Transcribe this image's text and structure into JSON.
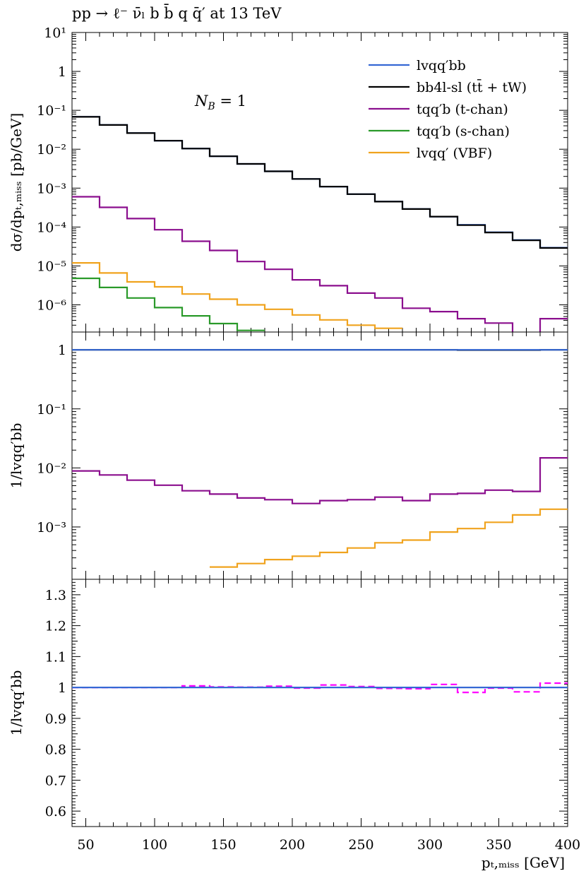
{
  "title": "pp → ℓ⁻ ν̄ₗ b b̄ q q̄′ at 13 TeV",
  "xlabel": "pₜ,ₘᵢₛₛ [GeV]",
  "colors": {
    "lvqqbb": "#3568d4",
    "bb4l": "#000000",
    "tchan": "#8b0f8e",
    "schan": "#2a9a2a",
    "vbf": "#f0a31e",
    "ratio_dashed": "#ff00ff"
  },
  "chart_data": [
    {
      "type": "line",
      "scale": "log",
      "ylabel": "dσ/dpₜ,ₘᵢₛₛ [pb/GeV]",
      "annotation": "N_B = 1",
      "legend_position": "top-right",
      "xlim": [
        40,
        400
      ],
      "ylim": [
        2e-07,
        10
      ],
      "yticks": [
        {
          "v": 10,
          "label": "10¹"
        },
        {
          "v": 1,
          "label": "1"
        },
        {
          "v": 0.1,
          "label": "10⁻¹"
        },
        {
          "v": 0.01,
          "label": "10⁻²"
        },
        {
          "v": 0.001,
          "label": "10⁻³"
        },
        {
          "v": 0.0001,
          "label": "10⁻⁴"
        },
        {
          "v": 1e-05,
          "label": "10⁻⁵"
        },
        {
          "v": 1e-06,
          "label": "10⁻⁶"
        }
      ],
      "series": [
        {
          "key": "lvqqbb",
          "name": "lvqq′bb",
          "x0": 40,
          "bin": 20,
          "values": [
            0.068,
            0.042,
            0.026,
            0.0165,
            0.0104,
            0.0066,
            0.0042,
            0.0027,
            0.00172,
            0.00109,
            0.0007,
            0.00045,
            0.00029,
            0.000185,
            0.000114,
            7.35e-05,
            4.65e-05,
            2.95e-05
          ]
        },
        {
          "key": "bb4l",
          "name": "bb4l-sl (tt̄ + tW)",
          "x0": 40,
          "bin": 20,
          "values": [
            0.068,
            0.042,
            0.026,
            0.0165,
            0.0104,
            0.0066,
            0.0042,
            0.0027,
            0.00172,
            0.00109,
            0.0007,
            0.00045,
            0.00029,
            0.000185,
            0.000112,
            7.25e-05,
            4.55e-05,
            2.9e-05
          ]
        },
        {
          "key": "tchan",
          "name": "tqq′b (t-chan)",
          "x0": 40,
          "bin": 20,
          "values": [
            0.0006,
            0.00032,
            0.000165,
            8.5e-05,
            4.3e-05,
            2.5e-05,
            1.3e-05,
            8.2e-06,
            4.4e-06,
            3.1e-06,
            2e-06,
            1.5e-06,
            8.2e-07,
            6.7e-07,
            4.4e-07,
            3.4e-07,
            1.8e-07,
            4.4e-07
          ]
        },
        {
          "key": "schan",
          "name": "tqq′b (s-chan)",
          "x0": 40,
          "bin": 20,
          "values": [
            4.8e-06,
            2.8e-06,
            1.5e-06,
            8.5e-07,
            5.2e-07,
            3.3e-07,
            2.2e-07
          ]
        },
        {
          "key": "vbf",
          "name": "lvqq′ (VBF)",
          "x0": 40,
          "bin": 20,
          "values": [
            1.2e-05,
            6.6e-06,
            3.9e-06,
            2.9e-06,
            1.9e-06,
            1.4e-06,
            1e-06,
            7.7e-07,
            5.5e-07,
            4.1e-07,
            3e-07,
            2.5e-07
          ]
        }
      ]
    },
    {
      "type": "line",
      "scale": "log",
      "ylabel": "1/lvqq′bb",
      "xlim": [
        40,
        400
      ],
      "ylim": [
        0.00013,
        2
      ],
      "yticks": [
        {
          "v": 1,
          "label": "1"
        },
        {
          "v": 0.1,
          "label": "10⁻¹"
        },
        {
          "v": 0.01,
          "label": "10⁻²"
        },
        {
          "v": 0.001,
          "label": "10⁻³"
        }
      ],
      "series": [
        {
          "key": "bb4l",
          "x0": 40,
          "bin": 20,
          "values": [
            1,
            1,
            1,
            1,
            1,
            1,
            1,
            1,
            1,
            1,
            1,
            1,
            1,
            1,
            0.99,
            0.99,
            0.99,
            1
          ]
        },
        {
          "key": "lvqqbb",
          "x0": 40,
          "bin": 20,
          "values": [
            1,
            1,
            1,
            1,
            1,
            1,
            1,
            1,
            1,
            1,
            1,
            1,
            1,
            1,
            1,
            1,
            1,
            1
          ]
        },
        {
          "key": "tchan",
          "x0": 40,
          "bin": 20,
          "values": [
            0.0089,
            0.0076,
            0.0062,
            0.0051,
            0.0041,
            0.0036,
            0.0031,
            0.0029,
            0.0025,
            0.0028,
            0.0029,
            0.0032,
            0.0028,
            0.0036,
            0.0037,
            0.0042,
            0.004,
            0.0148
          ]
        },
        {
          "key": "vbf",
          "x0": 40,
          "bin": 20,
          "values": [
            null,
            null,
            null,
            null,
            null,
            0.00021,
            0.00024,
            0.00028,
            0.00032,
            0.00037,
            0.00044,
            0.00054,
            0.0006,
            0.00082,
            0.00094,
            0.0012,
            0.0016,
            0.002
          ]
        }
      ]
    },
    {
      "type": "line",
      "scale": "linear",
      "ylabel": "1/lvqq′bb",
      "xlim": [
        40,
        400
      ],
      "ylim": [
        0.55,
        1.35
      ],
      "yticks": [
        {
          "v": 1.3,
          "label": "1.3"
        },
        {
          "v": 1.2,
          "label": "1.2"
        },
        {
          "v": 1.1,
          "label": "1.1"
        },
        {
          "v": 1.0,
          "label": "1"
        },
        {
          "v": 0.9,
          "label": "0.9"
        },
        {
          "v": 0.8,
          "label": "0.8"
        },
        {
          "v": 0.7,
          "label": "0.7"
        },
        {
          "v": 0.6,
          "label": "0.6"
        }
      ],
      "xticks": [
        50,
        100,
        150,
        200,
        250,
        300,
        350,
        400
      ],
      "series": [
        {
          "key": "ratio_dashed",
          "dashed": true,
          "x0": 40,
          "bin": 20,
          "values": [
            1.0,
            1.0,
            1.0,
            1.0,
            1.005,
            1.002,
            1.001,
            1.004,
            0.998,
            1.008,
            1.003,
            0.997,
            0.996,
            1.01,
            0.984,
            0.998,
            0.986,
            1.014
          ]
        },
        {
          "key": "lvqqbb",
          "x0": 40,
          "bin": 20,
          "values": [
            1,
            1,
            1,
            1,
            1,
            1,
            1,
            1,
            1,
            1,
            1,
            1,
            1,
            1,
            1,
            1,
            1,
            1
          ]
        }
      ]
    }
  ]
}
